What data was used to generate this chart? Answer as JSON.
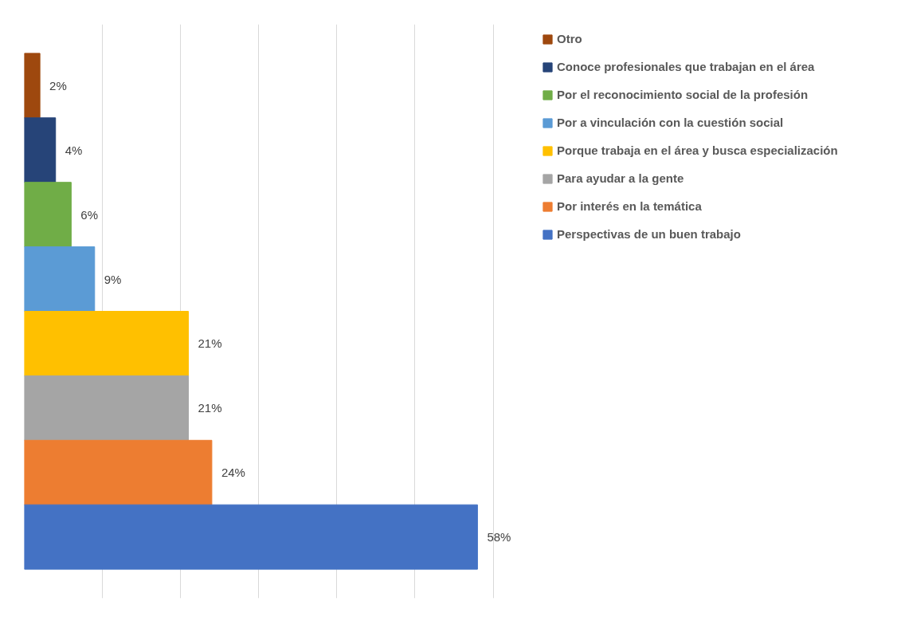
{
  "chart_data": {
    "type": "bar",
    "orientation": "horizontal",
    "categories": [
      null
    ],
    "series": [
      {
        "name": "Otro",
        "color": "#9e480e",
        "values": [
          2
        ],
        "value_labels": [
          "2%"
        ]
      },
      {
        "name": "Conoce profesionales que trabajan en el área",
        "color": "#264478",
        "values": [
          4
        ],
        "value_labels": [
          "4%"
        ]
      },
      {
        "name": "Por el reconocimiento social de la profesión",
        "color": "#70ad47",
        "values": [
          6
        ],
        "value_labels": [
          "6%"
        ]
      },
      {
        "name": "Por a vinculación con la cuestión social",
        "color": "#5b9bd5",
        "values": [
          9
        ],
        "value_labels": [
          "9%"
        ]
      },
      {
        "name": "Porque trabaja en el área y busca especialización",
        "color": "#ffc000",
        "values": [
          21
        ],
        "value_labels": [
          "21%"
        ]
      },
      {
        "name": "Para ayudar a la gente",
        "color": "#a5a5a5",
        "values": [
          21
        ],
        "value_labels": [
          "21%"
        ]
      },
      {
        "name": "Por interés en la temática",
        "color": "#ed7d31",
        "values": [
          24
        ],
        "value_labels": [
          "24%"
        ]
      },
      {
        "name": "Perspectivas de un buen trabajo",
        "color": "#4472c4",
        "values": [
          58
        ],
        "value_labels": [
          "58%"
        ]
      }
    ],
    "grid": "x",
    "legend": "right",
    "tick_labels": false
  }
}
